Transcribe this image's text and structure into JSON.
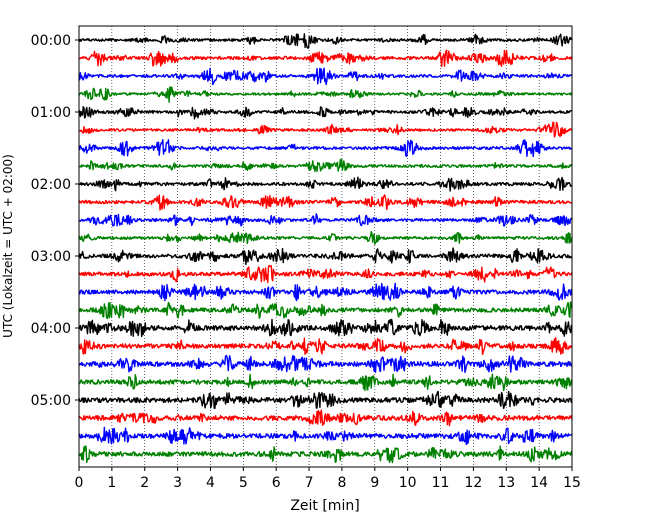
{
  "chart_data": {
    "type": "line",
    "title": "",
    "xlabel": "Zeit  [min]",
    "ylabel": "UTC (Lokalzeit = UTC + 02:00)",
    "xlim": [
      0,
      15
    ],
    "x_ticks": [
      "0",
      "1",
      "2",
      "3",
      "4",
      "5",
      "6",
      "7",
      "8",
      "9",
      "10",
      "11",
      "12",
      "13",
      "14",
      "15"
    ],
    "y_ticks": [
      "00:00",
      "01:00",
      "02:00",
      "03:00",
      "04:00",
      "05:00"
    ],
    "trace_interval_minutes": 15,
    "trace_colors": [
      "#000000",
      "#ff0000",
      "#0000ff",
      "#008000"
    ],
    "grid": "vertical dotted at each minute",
    "traces": [
      {
        "start": "00:00",
        "color": "#000000",
        "amp": 0.2
      },
      {
        "start": "00:15",
        "color": "#ff0000",
        "amp": 0.25
      },
      {
        "start": "00:30",
        "color": "#0000ff",
        "amp": 0.22
      },
      {
        "start": "00:45",
        "color": "#008000",
        "amp": 0.18
      },
      {
        "start": "01:00",
        "color": "#000000",
        "amp": 0.22
      },
      {
        "start": "01:15",
        "color": "#ff0000",
        "amp": 0.2
      },
      {
        "start": "01:30",
        "color": "#0000ff",
        "amp": 0.22
      },
      {
        "start": "01:45",
        "color": "#008000",
        "amp": 0.22
      },
      {
        "start": "02:00",
        "color": "#000000",
        "amp": 0.25
      },
      {
        "start": "02:15",
        "color": "#ff0000",
        "amp": 0.25
      },
      {
        "start": "02:30",
        "color": "#0000ff",
        "amp": 0.22
      },
      {
        "start": "02:45",
        "color": "#008000",
        "amp": 0.22
      },
      {
        "start": "03:00",
        "color": "#000000",
        "amp": 0.3
      },
      {
        "start": "03:15",
        "color": "#ff0000",
        "amp": 0.3
      },
      {
        "start": "03:30",
        "color": "#0000ff",
        "amp": 0.32
      },
      {
        "start": "03:45",
        "color": "#008000",
        "amp": 0.32
      },
      {
        "start": "04:00",
        "color": "#000000",
        "amp": 0.38
      },
      {
        "start": "04:15",
        "color": "#ff0000",
        "amp": 0.35
      },
      {
        "start": "04:30",
        "color": "#0000ff",
        "amp": 0.38
      },
      {
        "start": "04:45",
        "color": "#008000",
        "amp": 0.35
      },
      {
        "start": "05:00",
        "color": "#000000",
        "amp": 0.4
      },
      {
        "start": "05:15",
        "color": "#ff0000",
        "amp": 0.38
      },
      {
        "start": "05:30",
        "color": "#0000ff",
        "amp": 0.38
      },
      {
        "start": "05:45",
        "color": "#008000",
        "amp": 0.38
      }
    ]
  }
}
